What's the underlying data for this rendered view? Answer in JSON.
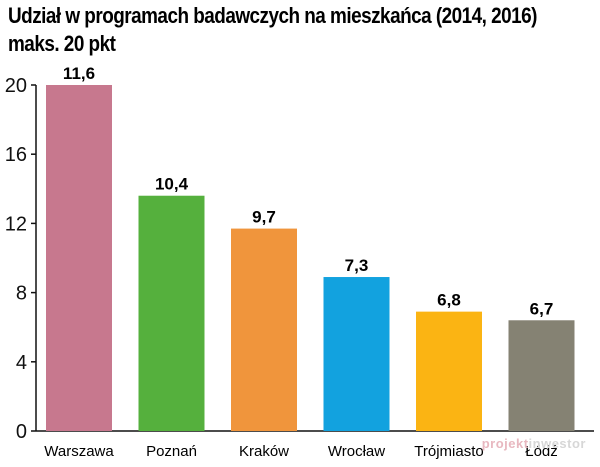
{
  "header": {
    "title_line1": "Udział w programach badawczych na mieszkańca (2014, 2016)",
    "title_line2": "maks. 20 pkt"
  },
  "chart_data": {
    "type": "bar",
    "categories": [
      "Warszawa",
      "Poznań",
      "Kraków",
      "Wrocław",
      "Trójmiasto",
      "Łódź"
    ],
    "values": [
      20,
      13.6,
      11.7,
      8.9,
      6.9,
      6.4
    ],
    "value_labels": [
      "11,6",
      "10,4",
      "9,7",
      "7,3",
      "6,8",
      "6,7"
    ],
    "colors": [
      "#c7788e",
      "#55b03d",
      "#f0953c",
      "#12a2df",
      "#fbb413",
      "#858273"
    ],
    "ylim": [
      0,
      20
    ],
    "yticks": [
      0,
      4,
      8,
      12,
      16,
      20
    ],
    "grid": false
  },
  "watermark": {
    "part1": "projekt",
    "part2": "inwestor"
  }
}
